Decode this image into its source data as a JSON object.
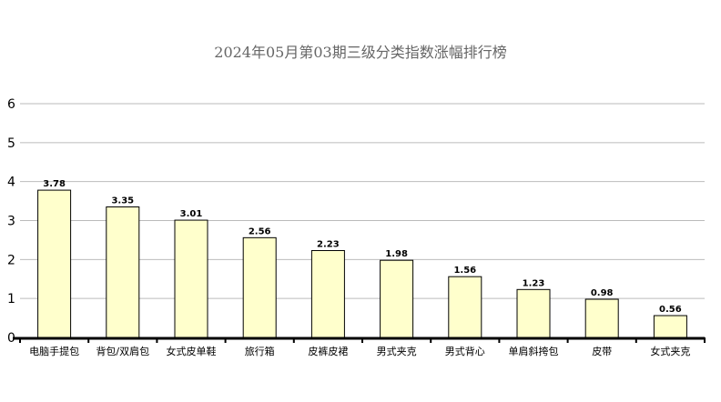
{
  "chart_data": {
    "type": "bar",
    "title": "2024年05月第03期三级分类指数涨幅排行榜",
    "categories": [
      "电脑手提包",
      "背包/双肩包",
      "女式皮单鞋",
      "旅行箱",
      "皮裤皮裙",
      "男式夹克",
      "男式背心",
      "单肩斜挎包",
      "皮带",
      "女式夹克"
    ],
    "values": [
      3.78,
      3.35,
      3.01,
      2.56,
      2.23,
      1.98,
      1.56,
      1.23,
      0.98,
      0.56
    ],
    "data_labels": [
      "3.78",
      "3.35",
      "3.01",
      "2.56",
      "2.23",
      "1.98",
      "1.56",
      "1.23",
      "0.98",
      "0.56"
    ],
    "yticks": [
      "0",
      "1",
      "2",
      "3",
      "4",
      "5",
      "6"
    ],
    "ylim": [
      0,
      6
    ],
    "grid": true,
    "legend": "none",
    "colors": {
      "bar_fill": "#ffffcc",
      "bar_stroke": "#000000",
      "grid": "#bbbbbb",
      "axis": "#000000",
      "title": "#666666"
    }
  }
}
